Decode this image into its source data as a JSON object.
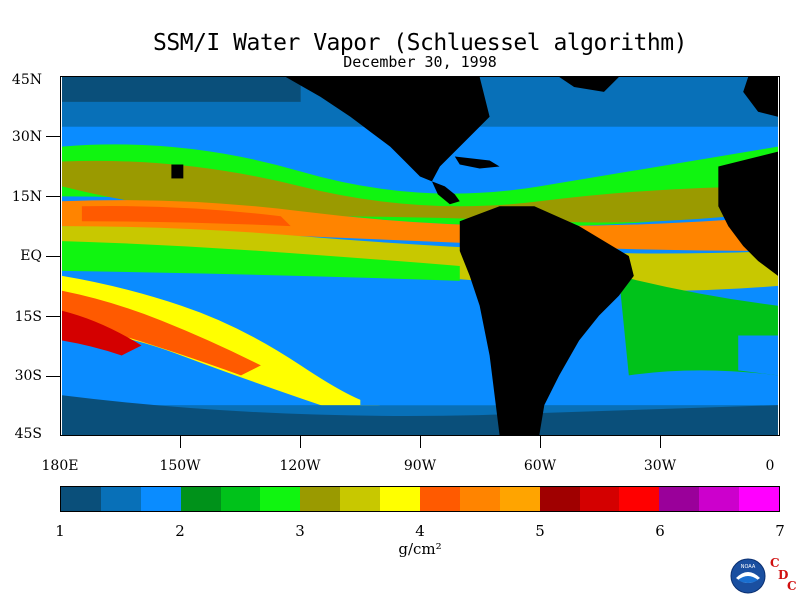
{
  "title": "SSM/I Water Vapor (Schluessel algorithm)",
  "subtitle": "December 30, 1998",
  "map": {
    "lat_labels": [
      "45N",
      "30N",
      "15N",
      "EQ",
      "15S",
      "30S",
      "45S"
    ],
    "lon_labels": [
      "180E",
      "150W",
      "120W",
      "90W",
      "60W",
      "30W",
      "0"
    ],
    "land_color": "#000000"
  },
  "colorbar": {
    "colors": [
      "#0a4f7a",
      "#0870b8",
      "#0a8cff",
      "#00921a",
      "#00c21a",
      "#10f510",
      "#9a9a00",
      "#c8c800",
      "#ffff00",
      "#ff5a00",
      "#ff8400",
      "#ffa400",
      "#a00000",
      "#d40000",
      "#ff0000",
      "#9a009a",
      "#cc00cc",
      "#ff00ff"
    ],
    "labels": [
      "1",
      "2",
      "3",
      "4",
      "5",
      "6",
      "7"
    ],
    "units": "g/cm²"
  },
  "logo": {
    "noaa": "NOAA",
    "cdc": [
      "C",
      "D",
      "C"
    ]
  }
}
